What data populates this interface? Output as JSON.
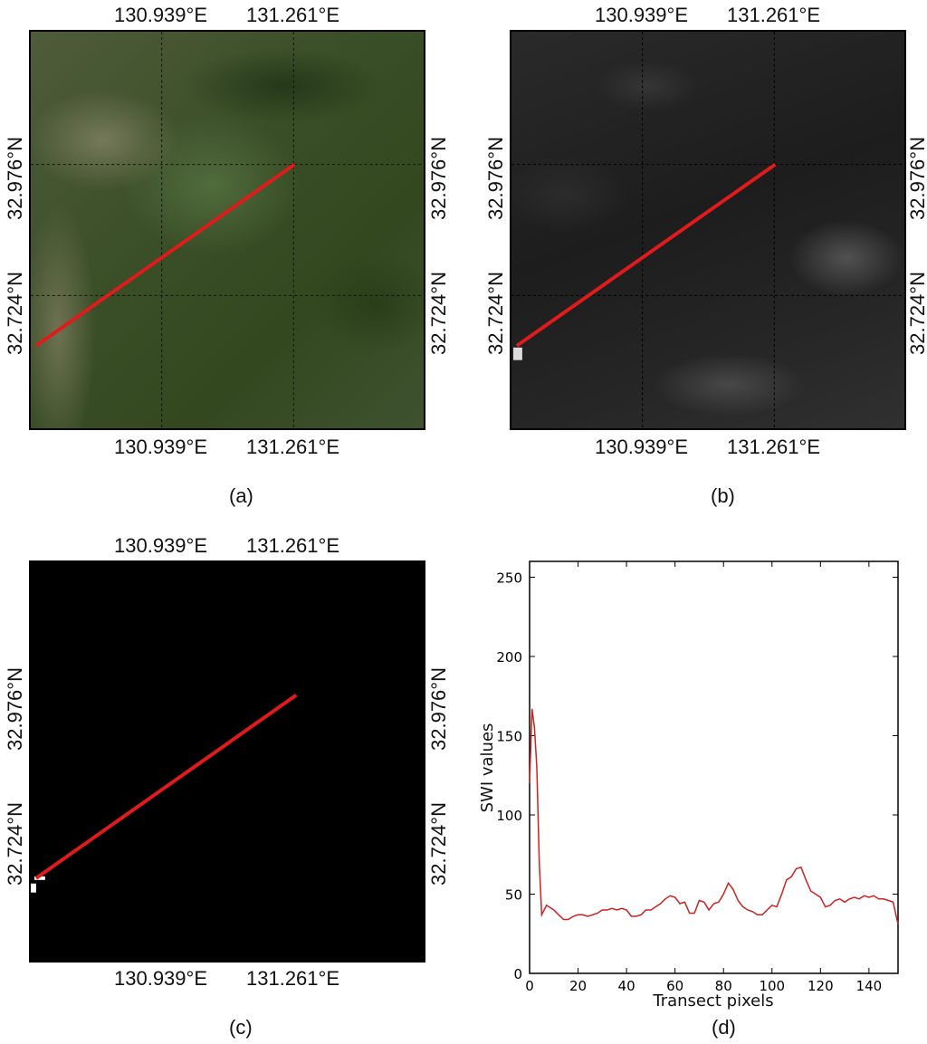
{
  "lon_ticks": [
    "130.939°E",
    "131.261°E"
  ],
  "lat_ticks": [
    "32.976°N",
    "32.724°N"
  ],
  "captions": {
    "a": "(a)",
    "b": "(b)",
    "c": "(c)",
    "d": "(d)"
  },
  "colors": {
    "transect": "#e01b1b",
    "line": "#cc2222"
  },
  "chart_data": {
    "type": "line",
    "title": "",
    "xlabel": "Transect pixels",
    "ylabel": "SWI values",
    "xlim": [
      0,
      152
    ],
    "ylim": [
      0,
      260
    ],
    "xticks": [
      0,
      20,
      40,
      60,
      80,
      100,
      120,
      140
    ],
    "yticks": [
      0,
      50,
      100,
      150,
      200,
      250
    ],
    "grid": false,
    "series": [
      {
        "x": [
          0,
          1,
          2,
          3,
          4,
          5,
          6,
          7,
          8,
          9,
          10,
          12,
          14,
          16,
          18,
          20,
          22,
          24,
          26,
          28,
          30,
          32,
          34,
          36,
          38,
          40,
          42,
          44,
          46,
          48,
          50,
          52,
          54,
          56,
          58,
          60,
          62,
          64,
          66,
          68,
          70,
          72,
          74,
          76,
          78,
          80,
          82,
          84,
          86,
          88,
          90,
          92,
          94,
          96,
          98,
          100,
          102,
          104,
          106,
          108,
          110,
          112,
          114,
          116,
          118,
          120,
          122,
          124,
          126,
          128,
          130,
          132,
          134,
          136,
          138,
          140,
          142,
          144,
          146,
          148,
          150,
          152
        ],
        "y": [
          120,
          167,
          155,
          130,
          70,
          37,
          40,
          43,
          42,
          41,
          40,
          37,
          34,
          34,
          36,
          37,
          37,
          36,
          37,
          38,
          40,
          40,
          41,
          40,
          41,
          40,
          36,
          36,
          37,
          40,
          40,
          42,
          44,
          47,
          49,
          48,
          44,
          45,
          38,
          38,
          46,
          45,
          40,
          44,
          45,
          50,
          57,
          53,
          46,
          42,
          40,
          39,
          37,
          37,
          40,
          43,
          42,
          50,
          59,
          61,
          66,
          67,
          59,
          52,
          50,
          48,
          42,
          43,
          46,
          47,
          45,
          47,
          48,
          47,
          49,
          48,
          49,
          47,
          47,
          46,
          45,
          31
        ]
      }
    ]
  }
}
